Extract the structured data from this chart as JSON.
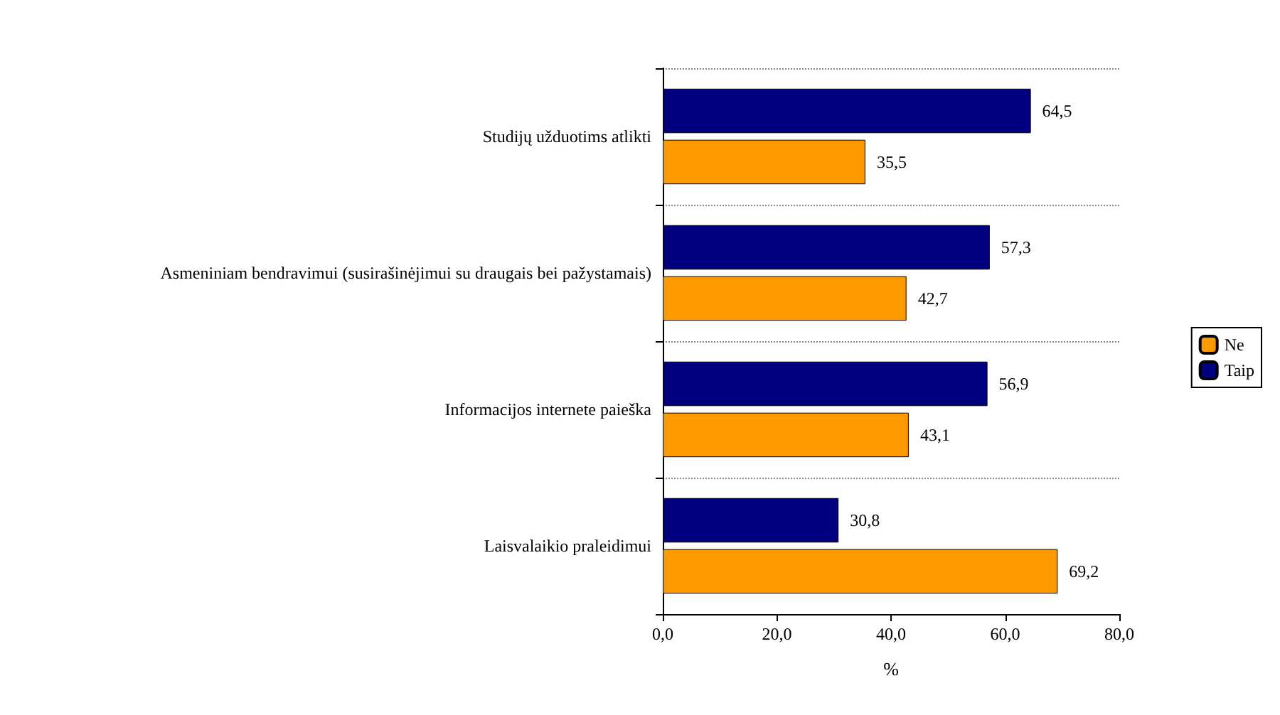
{
  "chart_data": {
    "type": "bar",
    "orientation": "horizontal",
    "xlabel": "%",
    "categories": [
      "Studijų užduotims atlikti",
      "Asmeniniam bendravimui (susirašinėjimui su draugais bei pažystamais)",
      "Informacijos internete paieška",
      "Laisvalaikio praleidimui"
    ],
    "series": [
      {
        "name": "Taip",
        "color": "#000080",
        "values": [
          64.5,
          57.3,
          56.9,
          30.8
        ],
        "value_labels": [
          "64,5",
          "57,3",
          "56,9",
          "30,8"
        ]
      },
      {
        "name": "Ne",
        "color": "#ff9900",
        "values": [
          35.5,
          42.7,
          43.1,
          69.2
        ],
        "value_labels": [
          "35,5",
          "42,7",
          "43,1",
          "69,2"
        ]
      }
    ],
    "xlim": [
      0,
      80
    ],
    "xticks": [
      {
        "value": 0,
        "label": "0,0"
      },
      {
        "value": 20,
        "label": "20,0"
      },
      {
        "value": 40,
        "label": "40,0"
      },
      {
        "value": 60,
        "label": "60,0"
      },
      {
        "value": 80,
        "label": "80,0"
      }
    ],
    "grid": "y",
    "legend": "right"
  }
}
